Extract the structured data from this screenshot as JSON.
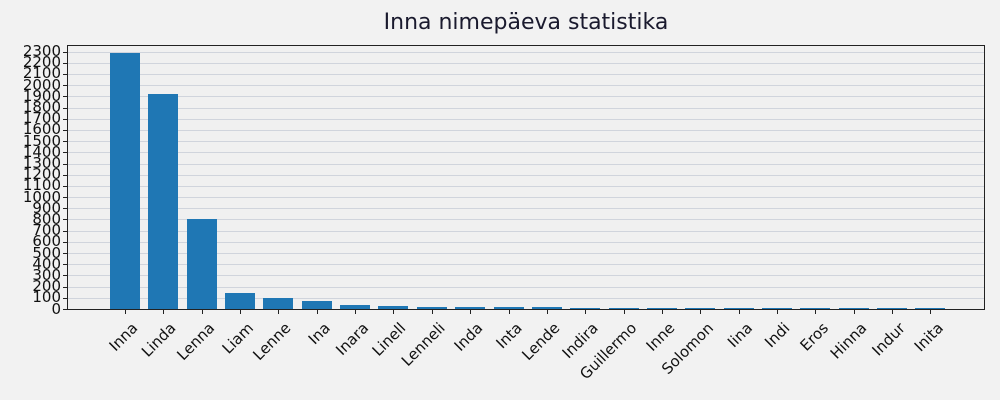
{
  "title": "Inna nimepäeva statistika",
  "colors": {
    "bar": "#1f77b4",
    "background": "#f2f2f2",
    "grid": "#d0d4dc"
  },
  "chart_data": {
    "type": "bar",
    "title": "Inna nimepäeva statistika",
    "xlabel": "",
    "ylabel": "",
    "ylim": [
      0,
      2350
    ],
    "yticks": [
      0,
      100,
      200,
      300,
      400,
      500,
      600,
      700,
      800,
      900,
      1000,
      1100,
      1200,
      1300,
      1400,
      1500,
      1600,
      1700,
      1800,
      1900,
      2000,
      2100,
      2200,
      2300
    ],
    "grid": "horizontal",
    "categories": [
      "Inna",
      "Linda",
      "Lenna",
      "Liam",
      "Lenne",
      "Ina",
      "Inara",
      "Linell",
      "Lenneli",
      "Inda",
      "Inta",
      "Lende",
      "Indira",
      "Guillermo",
      "Inne",
      "Solomon",
      "Iina",
      "Indi",
      "Eros",
      "Hinna",
      "Indur",
      "Inita"
    ],
    "values": [
      2290,
      1925,
      800,
      140,
      97,
      70,
      35,
      26,
      18,
      17,
      16,
      15,
      11,
      10,
      10,
      10,
      9,
      9,
      9,
      9,
      8,
      8
    ]
  }
}
